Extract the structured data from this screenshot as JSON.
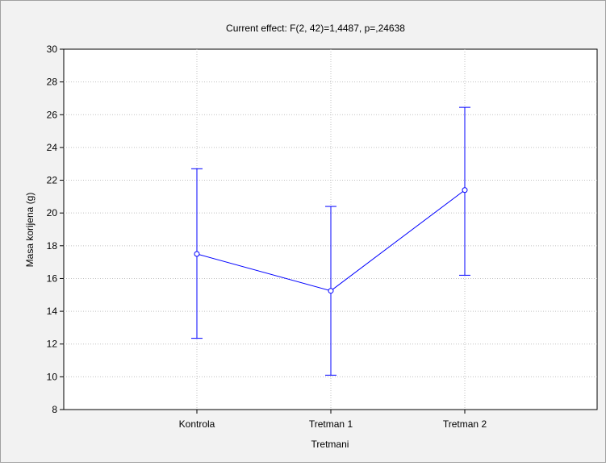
{
  "chart_data": {
    "type": "line",
    "title": "Current effect: F(2, 42)=1,4487, p=,24638",
    "xlabel": "Tretmani",
    "ylabel": "Masa korijena (g)",
    "categories": [
      "Kontrola",
      "Tretman 1",
      "Tretman 2"
    ],
    "series": [
      {
        "values": [
          17.5,
          15.25,
          21.4
        ],
        "lower": [
          12.35,
          10.1,
          16.2
        ],
        "upper": [
          22.7,
          20.4,
          26.45
        ]
      }
    ],
    "ylim": [
      8,
      30
    ],
    "yticks": [
      "8",
      "10",
      "12",
      "14",
      "16",
      "18",
      "20",
      "22",
      "24",
      "26",
      "28",
      "30"
    ],
    "grid": true,
    "colors": {
      "series": "#0000ff",
      "frame_background": "#f2f2f2",
      "plot_background": "#ffffff",
      "grid": "#c0c0c0"
    }
  }
}
